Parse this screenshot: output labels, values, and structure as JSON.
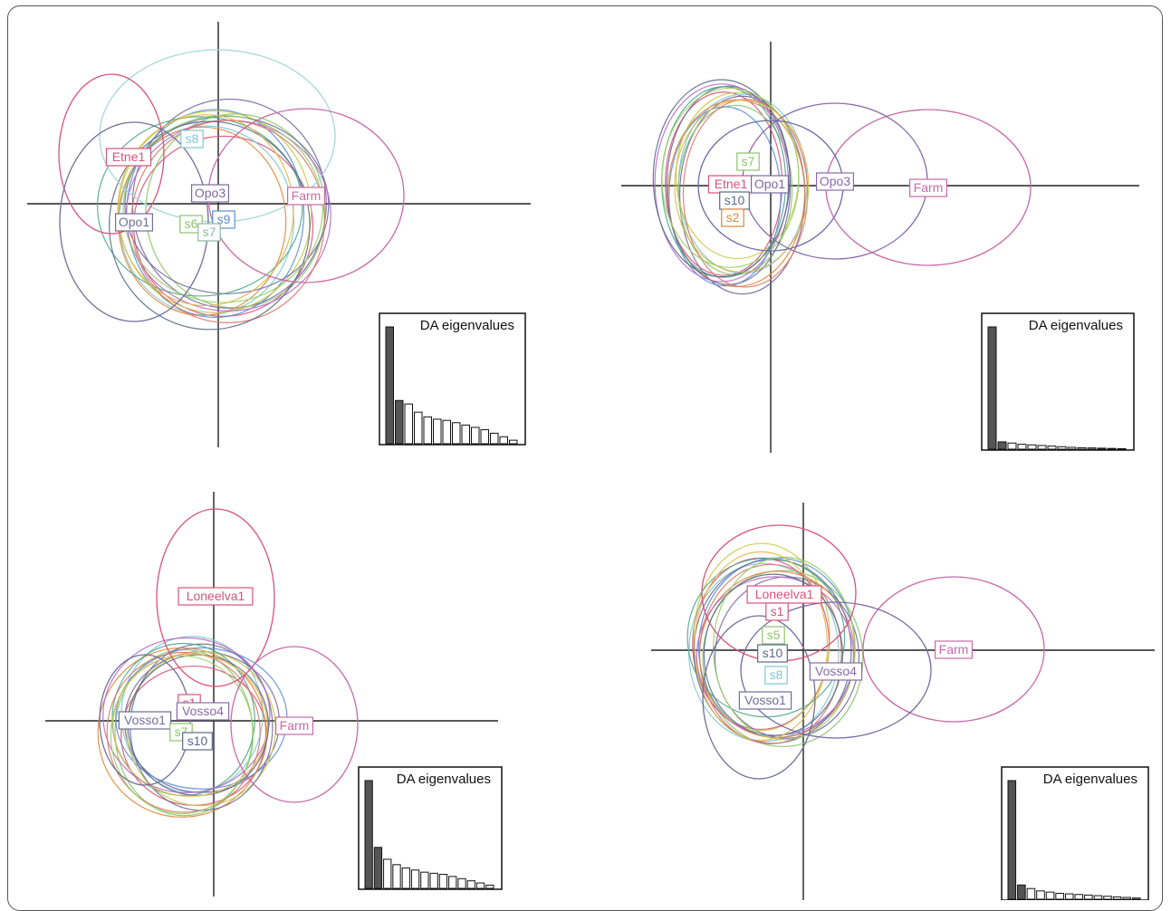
{
  "figure": {
    "panels": [
      {
        "id": "top-left",
        "inset_title": "DA eigenvalues",
        "eigenvalues": [
          100,
          37,
          34,
          27,
          23,
          21,
          20,
          18,
          16,
          14,
          12,
          9,
          6,
          3
        ]
      },
      {
        "id": "top-right",
        "inset_title": "DA eigenvalues",
        "eigenvalues": [
          100,
          6,
          5,
          4,
          3.5,
          3,
          2.5,
          2,
          1.5,
          1.2,
          1,
          0.8,
          0.6,
          0.4
        ]
      },
      {
        "id": "bottom-left",
        "inset_title": "DA eigenvalues",
        "eigenvalues": [
          100,
          38,
          27,
          22,
          19,
          17,
          15,
          14,
          13,
          11,
          9,
          7,
          5,
          3
        ]
      },
      {
        "id": "bottom-right",
        "inset_title": "DA eigenvalues",
        "eigenvalues": [
          100,
          12,
          9,
          7,
          6,
          5,
          4.5,
          4,
          3.5,
          3,
          2.5,
          2,
          1.5,
          1
        ]
      }
    ]
  },
  "chart_data": [
    {
      "type": "scatter",
      "title": "",
      "groups": [
        {
          "label": "Etne1",
          "color": "#d9537a"
        },
        {
          "label": "s8",
          "color": "#7fc8d4"
        },
        {
          "label": "Opo3",
          "color": "#7a6aa0"
        },
        {
          "label": "Farm",
          "color": "#c86aa8"
        },
        {
          "label": "Opo1",
          "color": "#6f6f9a"
        },
        {
          "label": "s6",
          "color": "#8ac46a"
        },
        {
          "label": "s9",
          "color": "#5b8fd6"
        },
        {
          "label": "s7",
          "color": "#8fb8a0"
        }
      ],
      "inset": {
        "title": "DA eigenvalues",
        "values": [
          100,
          37,
          34,
          27,
          23,
          21,
          20,
          18,
          16,
          14,
          12,
          9,
          6,
          3
        ]
      }
    },
    {
      "type": "scatter",
      "title": "",
      "groups": [
        {
          "label": "s7",
          "color": "#8ac46a"
        },
        {
          "label": "Etne1",
          "color": "#d9537a"
        },
        {
          "label": "Opo1",
          "color": "#7a6aa0"
        },
        {
          "label": "s10",
          "color": "#5a6a8a"
        },
        {
          "label": "s2",
          "color": "#e0873a"
        },
        {
          "label": "Opo3",
          "color": "#8a6aa8"
        },
        {
          "label": "Farm",
          "color": "#c86aa8"
        }
      ],
      "inset": {
        "title": "DA eigenvalues",
        "values": [
          100,
          6,
          5,
          4,
          3.5,
          3,
          2.5,
          2,
          1.5,
          1.2,
          1,
          0.8,
          0.6,
          0.4
        ]
      }
    },
    {
      "type": "scatter",
      "title": "",
      "groups": [
        {
          "label": "Loneelva1",
          "color": "#d9537a"
        },
        {
          "label": "Vosso1",
          "color": "#6f6f9a"
        },
        {
          "label": "s1",
          "color": "#d9537a"
        },
        {
          "label": "Vosso4",
          "color": "#8a6aa8"
        },
        {
          "label": "s7",
          "color": "#8ac46a"
        },
        {
          "label": "s10",
          "color": "#5a6a8a"
        },
        {
          "label": "Farm",
          "color": "#c86aa8"
        }
      ],
      "inset": {
        "title": "DA eigenvalues",
        "values": [
          100,
          38,
          27,
          22,
          19,
          17,
          15,
          14,
          13,
          11,
          9,
          7,
          5,
          3
        ]
      }
    },
    {
      "type": "scatter",
      "title": "",
      "groups": [
        {
          "label": "Loneelva1",
          "color": "#d9537a"
        },
        {
          "label": "s1",
          "color": "#d9537a"
        },
        {
          "label": "s5",
          "color": "#8ac46a"
        },
        {
          "label": "s10",
          "color": "#5a6a8a"
        },
        {
          "label": "s8",
          "color": "#7fc8d4"
        },
        {
          "label": "Vosso4",
          "color": "#8a6aa8"
        },
        {
          "label": "Vosso1",
          "color": "#6f6f9a"
        },
        {
          "label": "Farm",
          "color": "#c86aa8"
        }
      ],
      "inset": {
        "title": "DA eigenvalues",
        "values": [
          100,
          12,
          9,
          7,
          6,
          5,
          4.5,
          4,
          3.5,
          3,
          2.5,
          2,
          1.5,
          1
        ]
      }
    }
  ]
}
